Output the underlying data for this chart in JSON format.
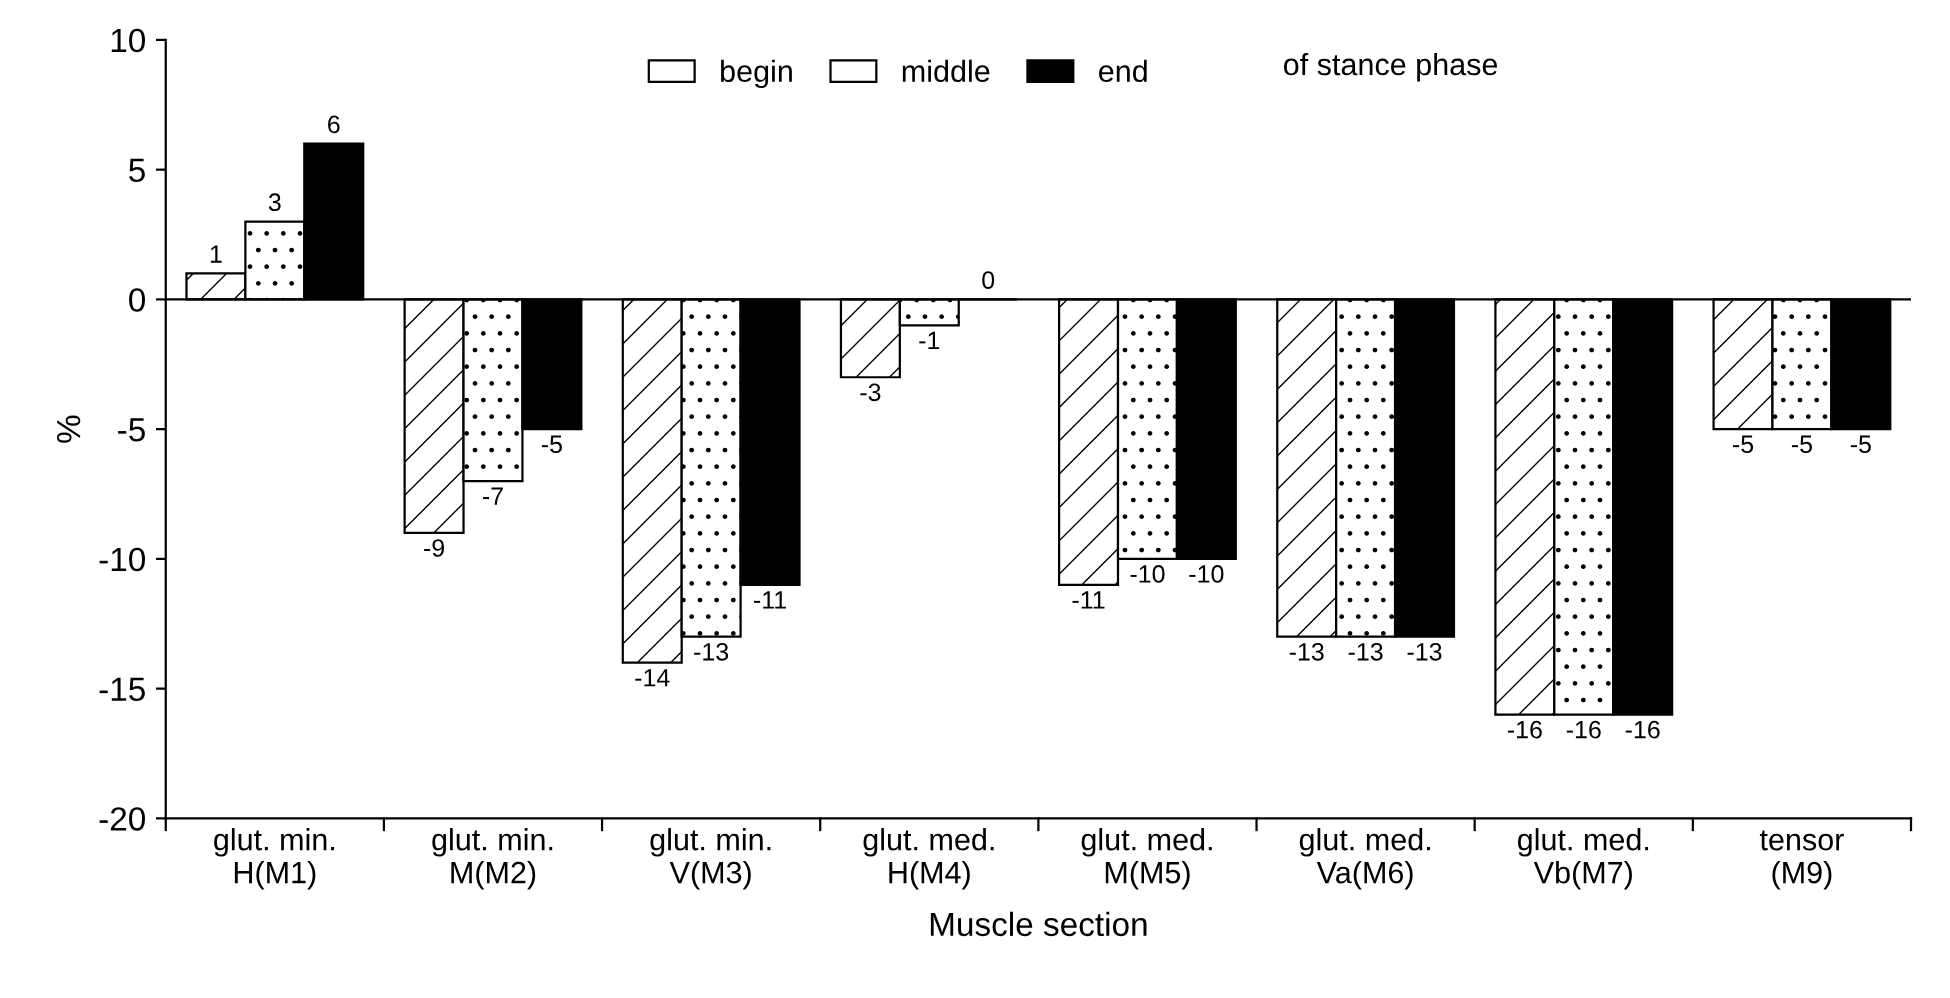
{
  "chart_data": {
    "type": "bar",
    "xlabel": "Muscle section",
    "ylabel": "%",
    "categories": [
      "glut. min.\nH(M1)",
      "glut. min.\nM(M2)",
      "glut. min.\nV(M3)",
      "glut. med.\nH(M4)",
      "glut. med.\nM(M5)",
      "glut. med.\nVa(M6)",
      "glut. med.\nVb(M7)",
      "tensor\n(M9)"
    ],
    "series": [
      {
        "name": "begin",
        "color": "#ffffff",
        "values": [
          1,
          -9,
          -14,
          -3,
          -11,
          -13,
          -16,
          -5
        ]
      },
      {
        "name": "middle",
        "color": "#ffffff",
        "values": [
          3,
          -7,
          -13,
          -1,
          -10,
          -13,
          -16,
          -5
        ]
      },
      {
        "name": "end",
        "color": "#000000",
        "values": [
          6,
          -5,
          -11,
          0,
          -10,
          -13,
          -16,
          -5
        ]
      }
    ],
    "ylim": [
      -20,
      10
    ],
    "yticks": [
      -20,
      -15,
      -10,
      -5,
      0,
      5,
      10
    ],
    "ref_lines": [
      {
        "axis": "y",
        "value": 0,
        "color": "#000000"
      }
    ],
    "annotations": [
      "of stance phase"
    ],
    "data_labels": true,
    "legend": "top",
    "grid": false
  }
}
